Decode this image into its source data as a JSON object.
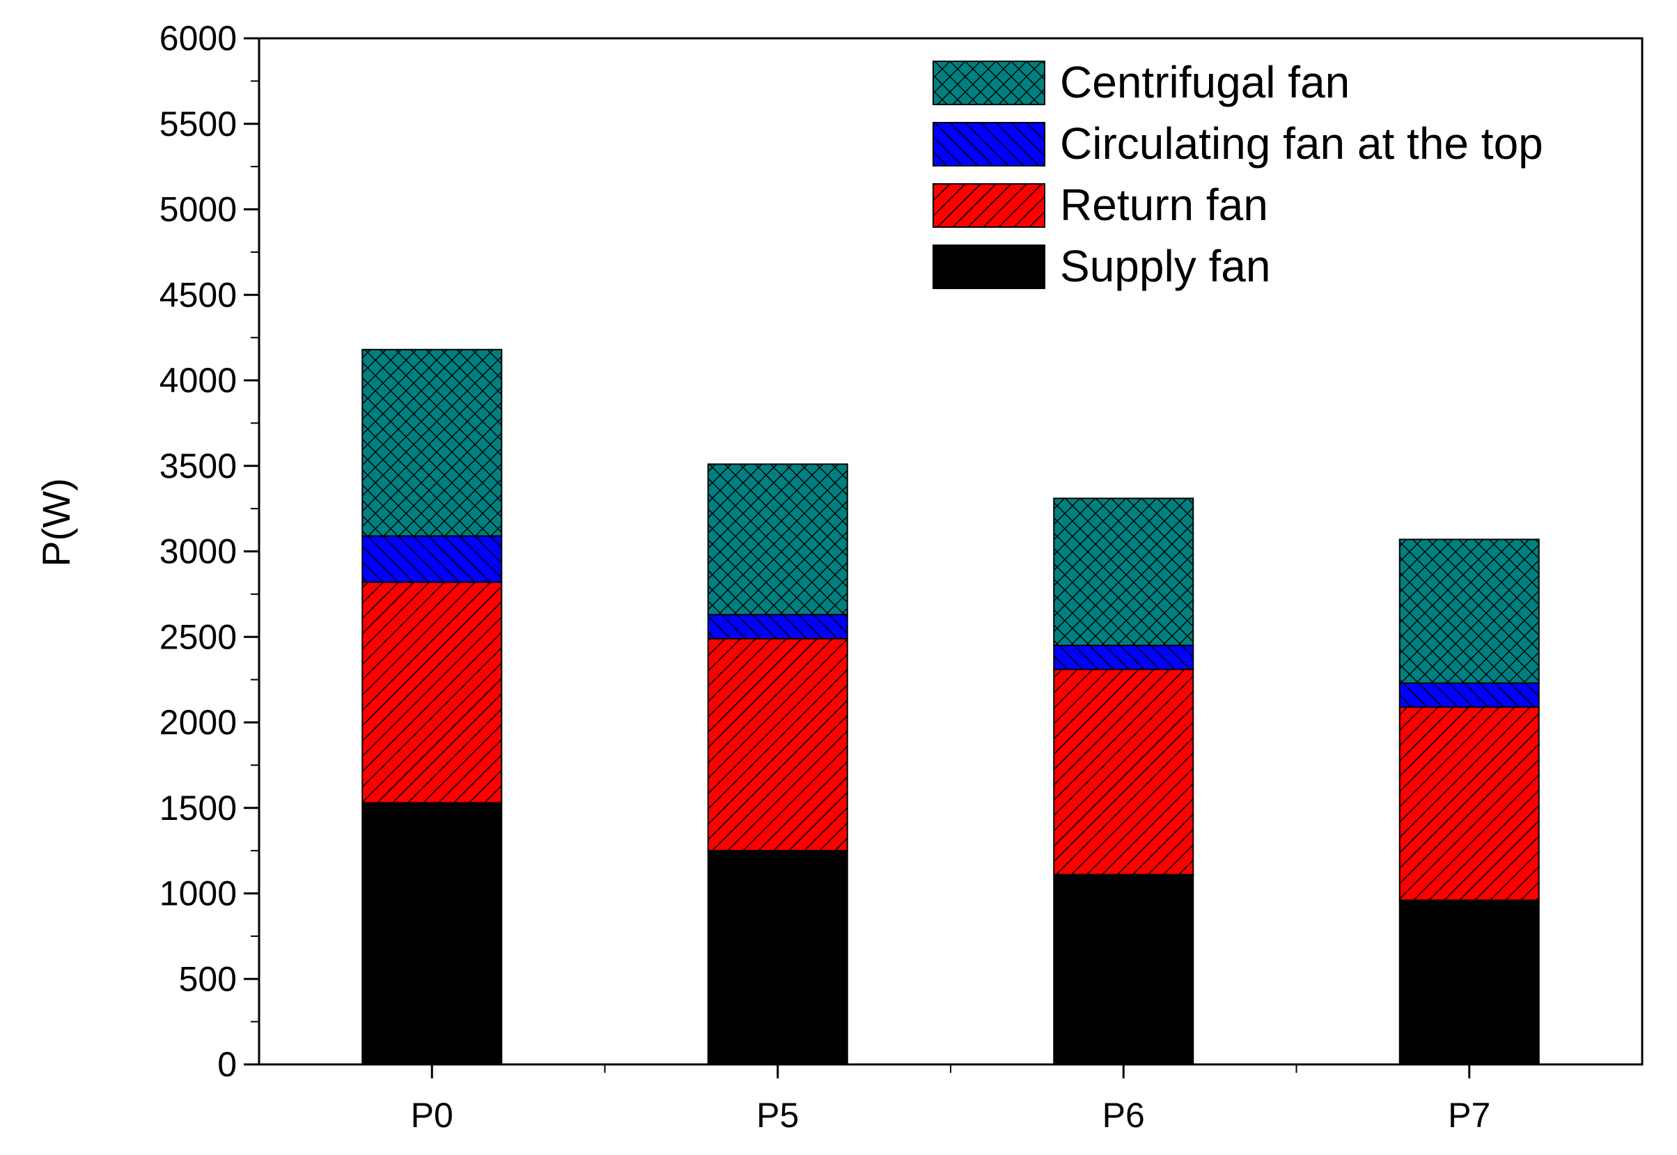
{
  "chart_data": {
    "type": "bar",
    "stacked": true,
    "categories": [
      "P0",
      "P5",
      "P6",
      "P7"
    ],
    "series": [
      {
        "name": "Supply fan",
        "values": [
          1530,
          1250,
          1110,
          960
        ],
        "color": "#000000",
        "pattern": "solid"
      },
      {
        "name": "Return fan",
        "values": [
          1290,
          1240,
          1200,
          1130
        ],
        "color": "#ff0000",
        "pattern": "forward-hatch"
      },
      {
        "name": "Circulating fan at the top",
        "values": [
          270,
          140,
          140,
          140
        ],
        "color": "#0000ff",
        "pattern": "back-hatch"
      },
      {
        "name": "Centrifugal fan",
        "values": [
          1090,
          880,
          860,
          840
        ],
        "color": "#008080",
        "pattern": "crosshatch"
      }
    ],
    "title": "",
    "xlabel": "",
    "ylabel": "P(W)",
    "ylim": [
      0,
      6000
    ],
    "yticks": [
      "0",
      "500",
      "1000",
      "1500",
      "2000",
      "2500",
      "3000",
      "3500",
      "4000",
      "4500",
      "5000",
      "5500",
      "6000"
    ],
    "legend_position": "top-right",
    "grid": false
  }
}
